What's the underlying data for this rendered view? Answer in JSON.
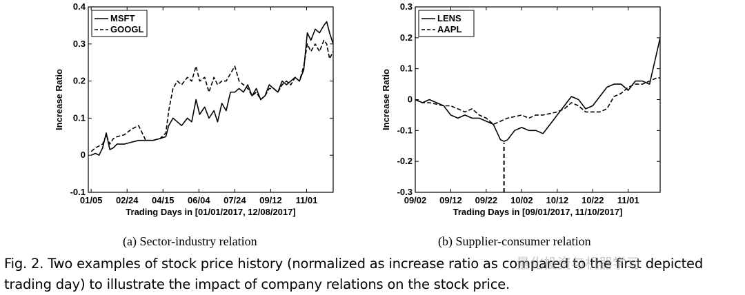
{
  "chart_data": [
    {
      "type": "line",
      "xlabel": "Trading Days in [01/01/2017, 12/08/2017]",
      "ylabel": "Increase Ratio",
      "xtick_labels": [
        "01/05",
        "02/24",
        "04/15",
        "06/04",
        "07/24",
        "09/12",
        "11/01"
      ],
      "xtick_days": [
        4,
        54,
        104,
        154,
        204,
        254,
        304
      ],
      "xlim": [
        0,
        341
      ],
      "ylim": [
        -0.1,
        0.4
      ],
      "yticks": [
        -0.1,
        0,
        0.1,
        0.2,
        0.3,
        0.4
      ],
      "ytick_labels": [
        "-0.1",
        "0",
        "0.1",
        "0.2",
        "0.3",
        "0.4"
      ],
      "grid": false,
      "legend_position": "top-left",
      "series": [
        {
          "name": "MSFT",
          "style": "solid",
          "x": [
            4,
            10,
            15,
            20,
            25,
            30,
            35,
            40,
            50,
            60,
            70,
            80,
            90,
            100,
            108,
            112,
            118,
            124,
            130,
            138,
            144,
            150,
            155,
            162,
            168,
            175,
            180,
            186,
            192,
            198,
            204,
            210,
            216,
            222,
            228,
            234,
            240,
            246,
            252,
            258,
            264,
            270,
            276,
            282,
            288,
            294,
            300,
            305,
            310,
            316,
            322,
            328,
            332,
            336,
            341
          ],
          "y": [
            0.0,
            0.005,
            0.0,
            0.02,
            0.06,
            0.015,
            0.02,
            0.03,
            0.03,
            0.035,
            0.04,
            0.04,
            0.04,
            0.045,
            0.05,
            0.08,
            0.1,
            0.09,
            0.08,
            0.1,
            0.09,
            0.15,
            0.11,
            0.13,
            0.1,
            0.12,
            0.09,
            0.14,
            0.12,
            0.17,
            0.17,
            0.18,
            0.17,
            0.19,
            0.16,
            0.18,
            0.15,
            0.16,
            0.19,
            0.18,
            0.17,
            0.2,
            0.19,
            0.2,
            0.21,
            0.2,
            0.23,
            0.33,
            0.31,
            0.34,
            0.33,
            0.35,
            0.36,
            0.33,
            0.3
          ]
        },
        {
          "name": "GOOGL",
          "style": "dashed",
          "x": [
            4,
            10,
            15,
            20,
            25,
            30,
            35,
            40,
            50,
            60,
            70,
            80,
            90,
            100,
            108,
            112,
            118,
            124,
            130,
            138,
            144,
            150,
            155,
            162,
            168,
            175,
            180,
            186,
            192,
            198,
            204,
            210,
            216,
            222,
            228,
            234,
            240,
            246,
            252,
            258,
            264,
            270,
            276,
            282,
            288,
            294,
            300,
            305,
            310,
            316,
            322,
            328,
            332,
            336,
            341
          ],
          "y": [
            0.01,
            0.02,
            0.025,
            0.03,
            0.055,
            0.03,
            0.045,
            0.05,
            0.055,
            0.07,
            0.08,
            0.04,
            0.04,
            0.045,
            0.06,
            0.12,
            0.18,
            0.2,
            0.19,
            0.21,
            0.2,
            0.24,
            0.2,
            0.21,
            0.17,
            0.21,
            0.19,
            0.2,
            0.2,
            0.22,
            0.24,
            0.2,
            0.19,
            0.18,
            0.16,
            0.17,
            0.15,
            0.16,
            0.18,
            0.18,
            0.17,
            0.19,
            0.2,
            0.19,
            0.21,
            0.2,
            0.24,
            0.3,
            0.28,
            0.3,
            0.28,
            0.31,
            0.3,
            0.26,
            0.28
          ]
        }
      ]
    },
    {
      "type": "line",
      "xlabel": "Trading Days in [09/01/2017, 11/10/2017]",
      "ylabel": "Increase Ratio",
      "xtick_labels": [
        "09/02",
        "09/12",
        "09/22",
        "10/02",
        "10/12",
        "10/22",
        "11/01"
      ],
      "xtick_days": [
        1,
        11,
        21,
        31,
        41,
        51,
        61
      ],
      "xlim": [
        1,
        70
      ],
      "ylim": [
        -0.3,
        0.3
      ],
      "yticks": [
        -0.3,
        -0.2,
        -0.1,
        0,
        0.1,
        0.2,
        0.3
      ],
      "ytick_labels": [
        "-0.3",
        "-0.2",
        "-0.1",
        "0",
        "0.1",
        "0.2",
        "0.3"
      ],
      "grid": false,
      "legend_position": "top-left",
      "annotations": [
        {
          "type": "vertical-dashed-line",
          "x": 26,
          "from_y": -0.3,
          "to_y": -0.14
        }
      ],
      "series": [
        {
          "name": "LENS",
          "style": "solid",
          "x": [
            1,
            3,
            5,
            7,
            9,
            11,
            13,
            15,
            17,
            19,
            21,
            23,
            25,
            26,
            27,
            29,
            31,
            33,
            35,
            37,
            39,
            41,
            43,
            45,
            47,
            49,
            51,
            53,
            55,
            57,
            59,
            61,
            63,
            65,
            67,
            69,
            70
          ],
          "y": [
            0.0,
            -0.01,
            0.0,
            -0.01,
            -0.02,
            -0.05,
            -0.06,
            -0.05,
            -0.06,
            -0.06,
            -0.07,
            -0.08,
            -0.13,
            -0.135,
            -0.13,
            -0.1,
            -0.09,
            -0.1,
            -0.1,
            -0.11,
            -0.08,
            -0.05,
            -0.02,
            0.01,
            0.0,
            -0.03,
            -0.02,
            0.01,
            0.04,
            0.05,
            0.05,
            0.03,
            0.06,
            0.06,
            0.05,
            0.15,
            0.2
          ]
        },
        {
          "name": "AAPL",
          "style": "dashed",
          "x": [
            1,
            3,
            5,
            7,
            9,
            11,
            13,
            15,
            17,
            19,
            21,
            23,
            25,
            26,
            27,
            29,
            31,
            33,
            35,
            37,
            39,
            41,
            43,
            45,
            47,
            49,
            51,
            53,
            55,
            57,
            59,
            61,
            63,
            65,
            67,
            69,
            70
          ],
          "y": [
            0.0,
            -0.01,
            -0.01,
            -0.015,
            -0.02,
            -0.02,
            -0.03,
            -0.04,
            -0.03,
            -0.05,
            -0.06,
            -0.08,
            -0.07,
            -0.065,
            -0.06,
            -0.055,
            -0.05,
            -0.06,
            -0.05,
            -0.05,
            -0.045,
            -0.04,
            -0.03,
            -0.01,
            -0.02,
            -0.04,
            -0.04,
            -0.04,
            -0.03,
            0.01,
            0.02,
            0.04,
            0.05,
            0.05,
            0.06,
            0.07,
            0.07
          ]
        }
      ]
    }
  ],
  "subcaptions": {
    "a": "(a)  Sector-industry relation",
    "b": "(b)  Supplier-consumer relation"
  },
  "caption": "Fig. 2.  Two examples of stock price history (normalized as increase ratio as compared to the first depicted trading day) to illustrate the impact of company relations on the stock price.",
  "watermark": "量化投资与机器学习"
}
